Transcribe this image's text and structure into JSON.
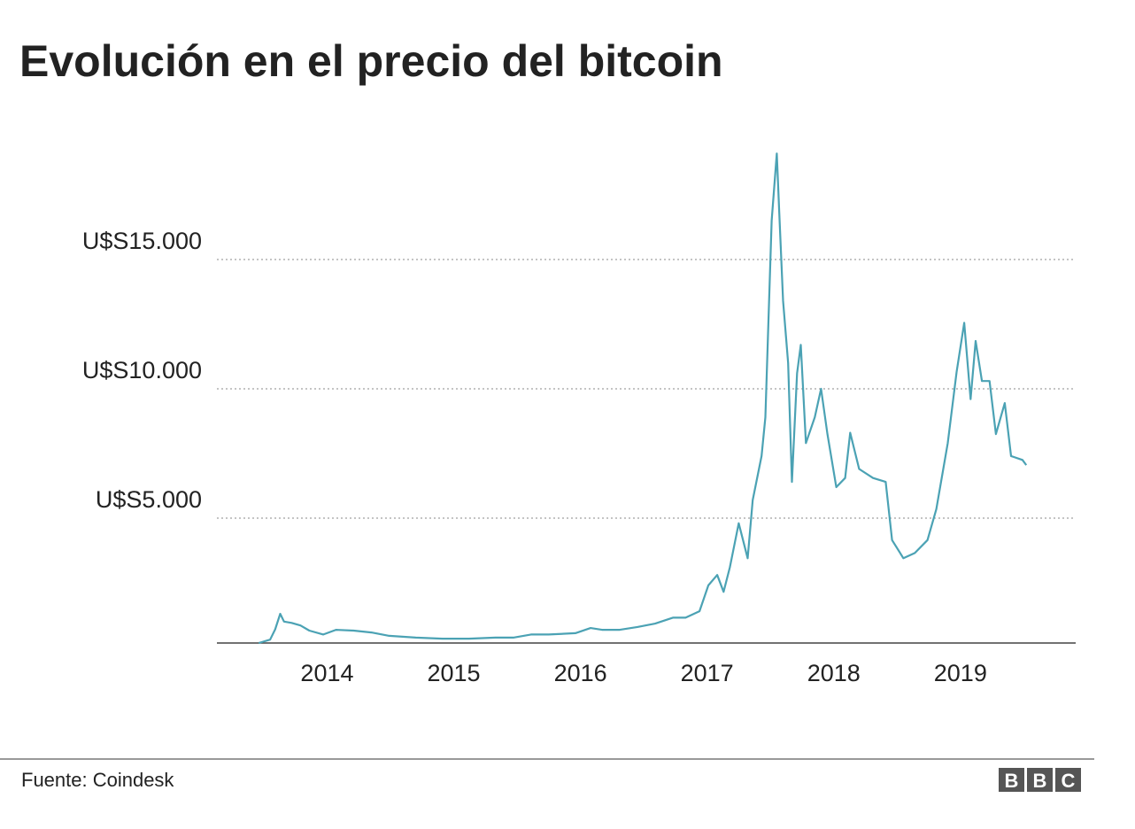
{
  "chart_data": {
    "type": "line",
    "title": "Evolución en el precio del bitcoin",
    "source": "Fuente: Coindesk",
    "logo": [
      "B",
      "B",
      "C"
    ],
    "x": [
      2013.46,
      2013.55,
      2013.59,
      2013.63,
      2013.66,
      2013.72,
      2013.79,
      2013.86,
      2013.97,
      2014.07,
      2014.21,
      2014.35,
      2014.49,
      2014.7,
      2014.91,
      2015.12,
      2015.33,
      2015.47,
      2015.61,
      2015.75,
      2015.96,
      2016.08,
      2016.17,
      2016.31,
      2016.45,
      2016.59,
      2016.73,
      2016.83,
      2016.94,
      2017.01,
      2017.08,
      2017.13,
      2017.18,
      2017.25,
      2017.32,
      2017.36,
      2017.43,
      2017.46,
      2017.51,
      2017.55,
      2017.57,
      2017.6,
      2017.64,
      2017.67,
      2017.71,
      2017.74,
      2017.78,
      2017.85,
      2017.9,
      2017.95,
      2018.02,
      2018.09,
      2018.13,
      2018.2,
      2018.31,
      2018.41,
      2018.46,
      2018.55,
      2018.64,
      2018.74,
      2018.81,
      2018.9,
      2018.97,
      2019.03,
      2019.08,
      2019.12,
      2019.17,
      2019.23,
      2019.28,
      2019.35,
      2019.4,
      2019.49,
      2019.52
    ],
    "series": [
      {
        "name": "Precio del bitcoin",
        "color": "#4ba2b4",
        "values": [
          170,
          300,
          700,
          1300,
          1000,
          950,
          850,
          650,
          500,
          680,
          650,
          580,
          450,
          380,
          340,
          340,
          380,
          380,
          500,
          500,
          550,
          750,
          680,
          680,
          790,
          920,
          1150,
          1150,
          1400,
          2400,
          2800,
          2150,
          3100,
          4800,
          3450,
          5700,
          7400,
          8900,
          16500,
          19100,
          16800,
          13400,
          11000,
          6400,
          10600,
          11700,
          7900,
          8900,
          10000,
          8250,
          6200,
          6550,
          8300,
          6900,
          6550,
          6400,
          4150,
          3450,
          3650,
          4150,
          5350,
          7900,
          10650,
          12550,
          9600,
          11850,
          10300,
          10300,
          8250,
          9450,
          7400,
          7250,
          7050
        ]
      }
    ],
    "xlim": [
      2013.13,
      2019.91
    ],
    "xticks": [
      2014,
      2015,
      2016,
      2017,
      2018,
      2019
    ],
    "ylim": [
      0,
      20000
    ],
    "yticks": [
      {
        "value": 5000,
        "label": "U$S5.000"
      },
      {
        "value": 10000,
        "label": "U$S10.000"
      },
      {
        "value": 15000,
        "label": "U$S15.000"
      }
    ],
    "grid": true
  }
}
